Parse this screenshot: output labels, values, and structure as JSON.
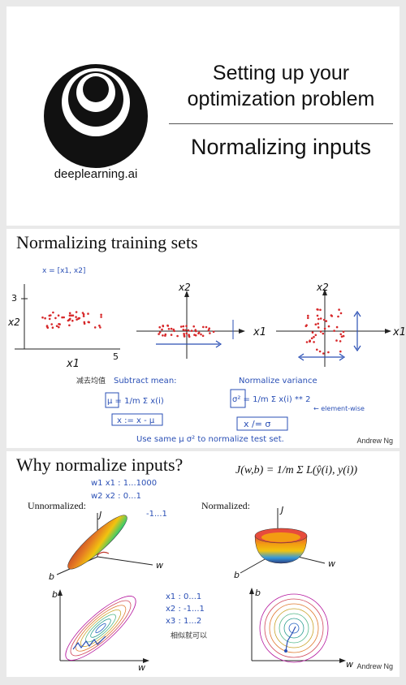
{
  "slide1": {
    "logo_text": "deeplearning.ai",
    "title_lines": [
      "Setting up your",
      "optimization problem"
    ],
    "subtitle": "Normalizing inputs"
  },
  "slide2": {
    "title": "Normalizing training sets",
    "credit": "Andrew Ng",
    "plot1": {
      "ylabel": "x2",
      "xlabel": "x1",
      "ytick": "3",
      "xtick": "5"
    },
    "plot2": {
      "ylabel": "x2",
      "xlabel": "x1"
    },
    "plot3": {
      "ylabel": "x2",
      "xlabel": "x1"
    },
    "notes": {
      "x_vec": "x = [x1, x2]",
      "cn_subtract": "减去均值",
      "subtract_mean": "Subtract mean:",
      "mu_formula": "μ = 1/m Σ x(i)",
      "x_update": "x := x - μ",
      "normalize_variance": "Normalize variance",
      "sigma_formula": "σ² = 1/m Σ x(i) ** 2",
      "element_wise": "← element-wise",
      "x_divide": "x /= σ",
      "use_same": "Use same μ σ² to normalize test set."
    }
  },
  "slide3": {
    "title": "Why normalize inputs?",
    "formula": "J(w,b) = 1/m Σ L(ŷ(i), y(i))",
    "unnormalized_label": "Unnormalized:",
    "normalized_label": "Normalized:",
    "credit": "Andrew Ng",
    "axis": {
      "j": "J",
      "w": "w",
      "b": "b"
    },
    "notes_top": [
      "w1  x1 : 1...1000",
      "w2  x2 : 0...1",
      "-1...1"
    ],
    "notes_right": [
      "x1 : 0...1",
      "x2 : -1...1",
      "x3 : 1...2"
    ],
    "cn_similar": "相似就可以"
  }
}
